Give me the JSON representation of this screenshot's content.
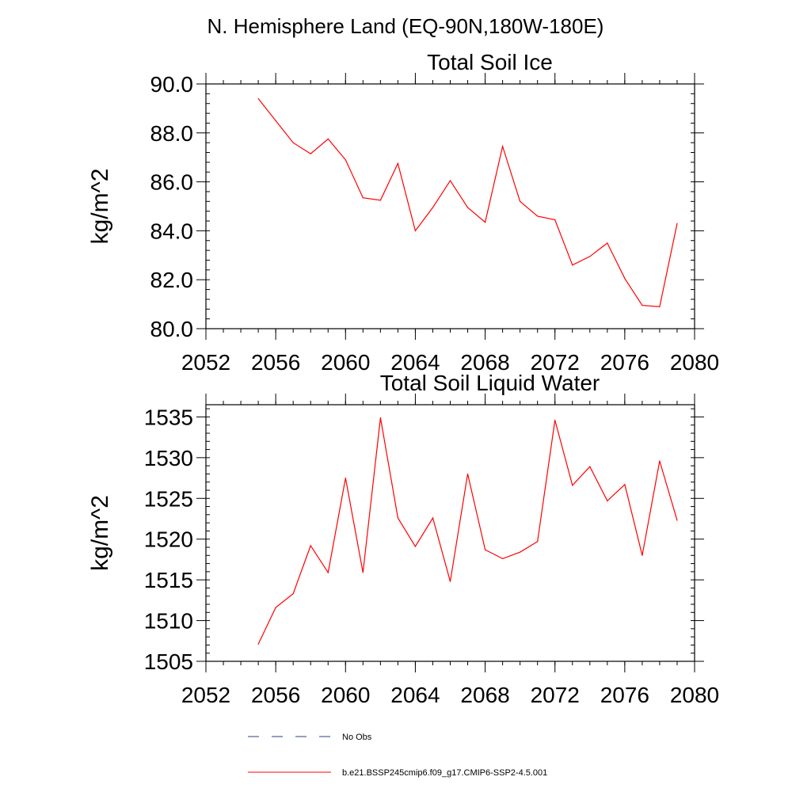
{
  "figure": {
    "supertitle": "N. Hemisphere Land (EQ-90N,180W-180E)"
  },
  "chart_data": [
    {
      "type": "line",
      "title": "Total Soil Ice",
      "xlabel": "",
      "ylabel": "kg/m^2",
      "xlim": [
        2052,
        2080
      ],
      "ylim": [
        80,
        90
      ],
      "xticks": [
        2052,
        2056,
        2060,
        2064,
        2068,
        2072,
        2076,
        2080
      ],
      "xtick_labels": [
        "2052",
        "2056",
        "2060",
        "2064",
        "2068",
        "2072",
        "2076",
        "2080"
      ],
      "yticks": [
        80,
        82,
        84,
        86,
        88,
        90
      ],
      "ytick_labels": [
        "80.0",
        "82.0",
        "84.0",
        "86.0",
        "88.0",
        "90.0"
      ],
      "y_minor_step": 0.4,
      "x_minor_step": 1,
      "x": [
        2055,
        2056,
        2057,
        2058,
        2059,
        2060,
        2061,
        2062,
        2063,
        2064,
        2065,
        2066,
        2067,
        2068,
        2069,
        2070,
        2071,
        2072,
        2073,
        2074,
        2075,
        2076,
        2077,
        2078,
        2079
      ],
      "series": [
        {
          "name": "b.e21.BSSP245cmip6.f09_g17.CMIP6-SSP2-4.5.001",
          "color": "#ff0000",
          "values": [
            89.4,
            88.5,
            87.6,
            87.15,
            87.75,
            86.9,
            85.35,
            85.25,
            86.75,
            84.0,
            84.95,
            86.05,
            84.95,
            84.35,
            87.45,
            85.2,
            84.6,
            84.45,
            82.6,
            82.95,
            83.5,
            82.05,
            80.95,
            80.9,
            84.3
          ]
        }
      ]
    },
    {
      "type": "line",
      "title": "Total Soil Liquid Water",
      "xlabel": "",
      "ylabel": "kg/m^2",
      "xlim": [
        2052,
        2080
      ],
      "ylim": [
        1505,
        1536.5
      ],
      "xticks": [
        2052,
        2056,
        2060,
        2064,
        2068,
        2072,
        2076,
        2080
      ],
      "xtick_labels": [
        "2052",
        "2056",
        "2060",
        "2064",
        "2068",
        "2072",
        "2076",
        "2080"
      ],
      "yticks": [
        1505,
        1510,
        1515,
        1520,
        1525,
        1530,
        1535
      ],
      "ytick_labels": [
        "1505",
        "1510",
        "1515",
        "1520",
        "1525",
        "1530",
        "1535"
      ],
      "y_minor_step": 1,
      "x_minor_step": 1,
      "x": [
        2055,
        2056,
        2057,
        2058,
        2059,
        2060,
        2061,
        2062,
        2063,
        2064,
        2065,
        2066,
        2067,
        2068,
        2069,
        2070,
        2071,
        2072,
        2073,
        2074,
        2075,
        2076,
        2077,
        2078,
        2079
      ],
      "series": [
        {
          "name": "b.e21.BSSP245cmip6.f09_g17.CMIP6-SSP2-4.5.001",
          "color": "#ff0000",
          "values": [
            1507.1,
            1511.6,
            1513.3,
            1519.2,
            1515.9,
            1527.5,
            1515.9,
            1534.9,
            1522.6,
            1519.1,
            1522.6,
            1514.8,
            1528.0,
            1518.7,
            1517.6,
            1518.4,
            1519.7,
            1534.6,
            1526.6,
            1528.9,
            1524.7,
            1526.7,
            1518.0,
            1529.6,
            1522.3
          ]
        }
      ]
    }
  ],
  "legend": {
    "entries": [
      {
        "label": "No Obs",
        "color": "#2b3f87",
        "style": "dashed"
      },
      {
        "label": "b.e21.BSSP245cmip6.f09_g17.CMIP6-SSP2-4.5.001",
        "color": "#ff0000",
        "style": "solid"
      }
    ]
  }
}
